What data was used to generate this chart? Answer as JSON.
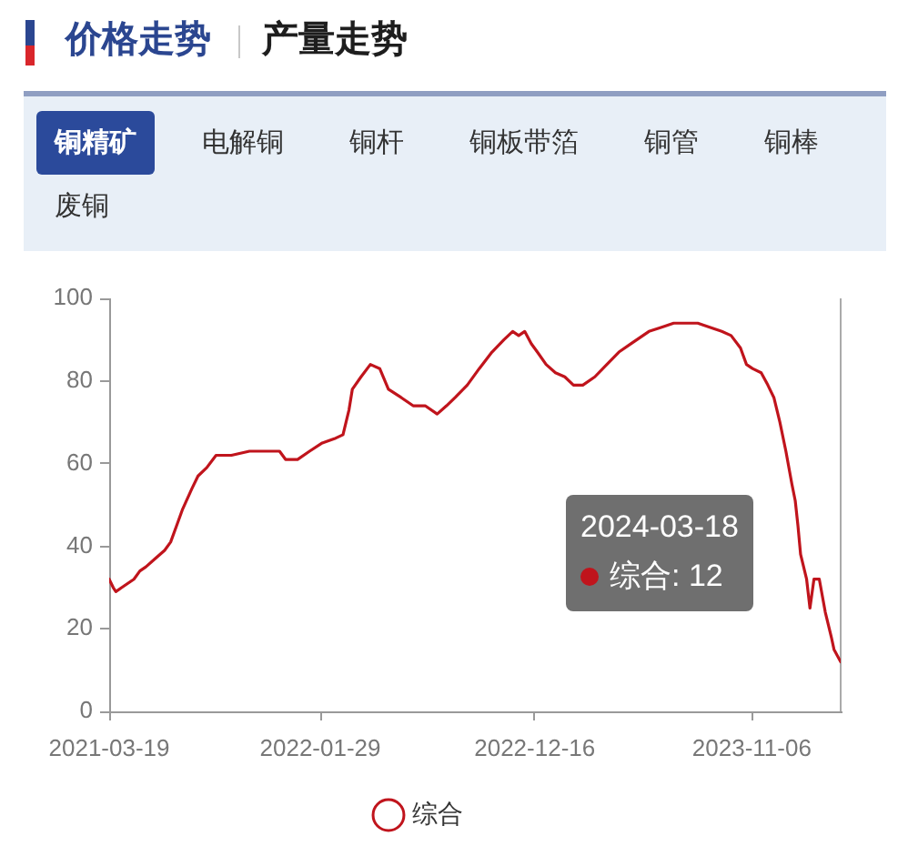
{
  "chart_data": {
    "type": "line",
    "title": "价格走势",
    "subtitle": "产量走势",
    "annotations": [
      "铜精矿",
      "电解铜",
      "铜杆",
      "铜板带箔",
      "铜管",
      "铜棒",
      "废铜",
      "2024-03-18\n综合: 12"
    ],
    "x": [
      "2021-03-19",
      "2021-03-25",
      "2021-03-29",
      "2021-04-07",
      "2021-04-16",
      "2021-04-25",
      "2021-05-04",
      "2021-05-13",
      "2021-05-27",
      "2021-06-10",
      "2021-06-19",
      "2021-06-28",
      "2021-07-07",
      "2021-07-21",
      "2021-07-30",
      "2021-08-12",
      "2021-08-26",
      "2021-09-18",
      "2021-10-15",
      "2021-11-11",
      "2021-11-29",
      "2021-12-08",
      "2021-12-26",
      "2022-01-13",
      "2022-02-01",
      "2022-02-19",
      "2022-03-04",
      "2022-03-13",
      "2022-03-18",
      "2022-03-31",
      "2022-04-14",
      "2022-04-28",
      "2022-05-11",
      "2022-05-30",
      "2022-06-17",
      "2022-07-05",
      "2022-07-23",
      "2022-08-06",
      "2022-08-19",
      "2022-09-06",
      "2022-09-24",
      "2022-10-13",
      "2022-10-31",
      "2022-11-13",
      "2022-11-22",
      "2022-12-01",
      "2022-12-11",
      "2022-12-20",
      "2023-01-02",
      "2023-01-16",
      "2023-01-30",
      "2023-02-12",
      "2023-02-26",
      "2023-03-16",
      "2023-04-03",
      "2023-04-21",
      "2023-05-09",
      "2023-06-05",
      "2023-06-24",
      "2023-07-12",
      "2023-07-30",
      "2023-08-17",
      "2023-09-04",
      "2023-09-22",
      "2023-10-06",
      "2023-10-20",
      "2023-10-29",
      "2023-11-07",
      "2023-11-20",
      "2023-11-30",
      "2023-12-09",
      "2023-12-18",
      "2023-12-27",
      "2024-01-05",
      "2024-01-10",
      "2024-01-14",
      "2024-01-18",
      "2024-01-27",
      "2024-02-01",
      "2024-02-07",
      "2024-02-15",
      "2024-02-24",
      "2024-03-04",
      "2024-03-08",
      "2024-03-18"
    ],
    "series": [
      {
        "name": "综合",
        "color": "#c0141c",
        "values": [
          32,
          30,
          29,
          30,
          31,
          32,
          34,
          35,
          37,
          39,
          41,
          45,
          49,
          54,
          57,
          59,
          62,
          62,
          63,
          63,
          63,
          61,
          61,
          63,
          65,
          66,
          67,
          73,
          78,
          81,
          84,
          83,
          78,
          76,
          74,
          74,
          72,
          74,
          76,
          79,
          83,
          87,
          90,
          92,
          91,
          92,
          89,
          87,
          84,
          82,
          81,
          79,
          79,
          81,
          84,
          87,
          89,
          92,
          93,
          94,
          94,
          94,
          93,
          92,
          91,
          88,
          84,
          83,
          82,
          79,
          76,
          70,
          63,
          55,
          51,
          45,
          38,
          32,
          25,
          32,
          32,
          24,
          18,
          15,
          12
        ]
      }
    ],
    "xlim": [
      "2021-03-19",
      "2024-03-18"
    ],
    "xticks": [
      "2021-03-19",
      "2022-01-29",
      "2022-12-16",
      "2023-11-06"
    ],
    "ylim": [
      0,
      100
    ],
    "yticks": [
      0,
      20,
      40,
      60,
      80,
      100
    ],
    "legend": "bottom",
    "marker": "none",
    "ref_lines": [
      {
        "axis": "x",
        "value": "2024-03-18",
        "color": "#aaaaaa"
      }
    ]
  }
}
